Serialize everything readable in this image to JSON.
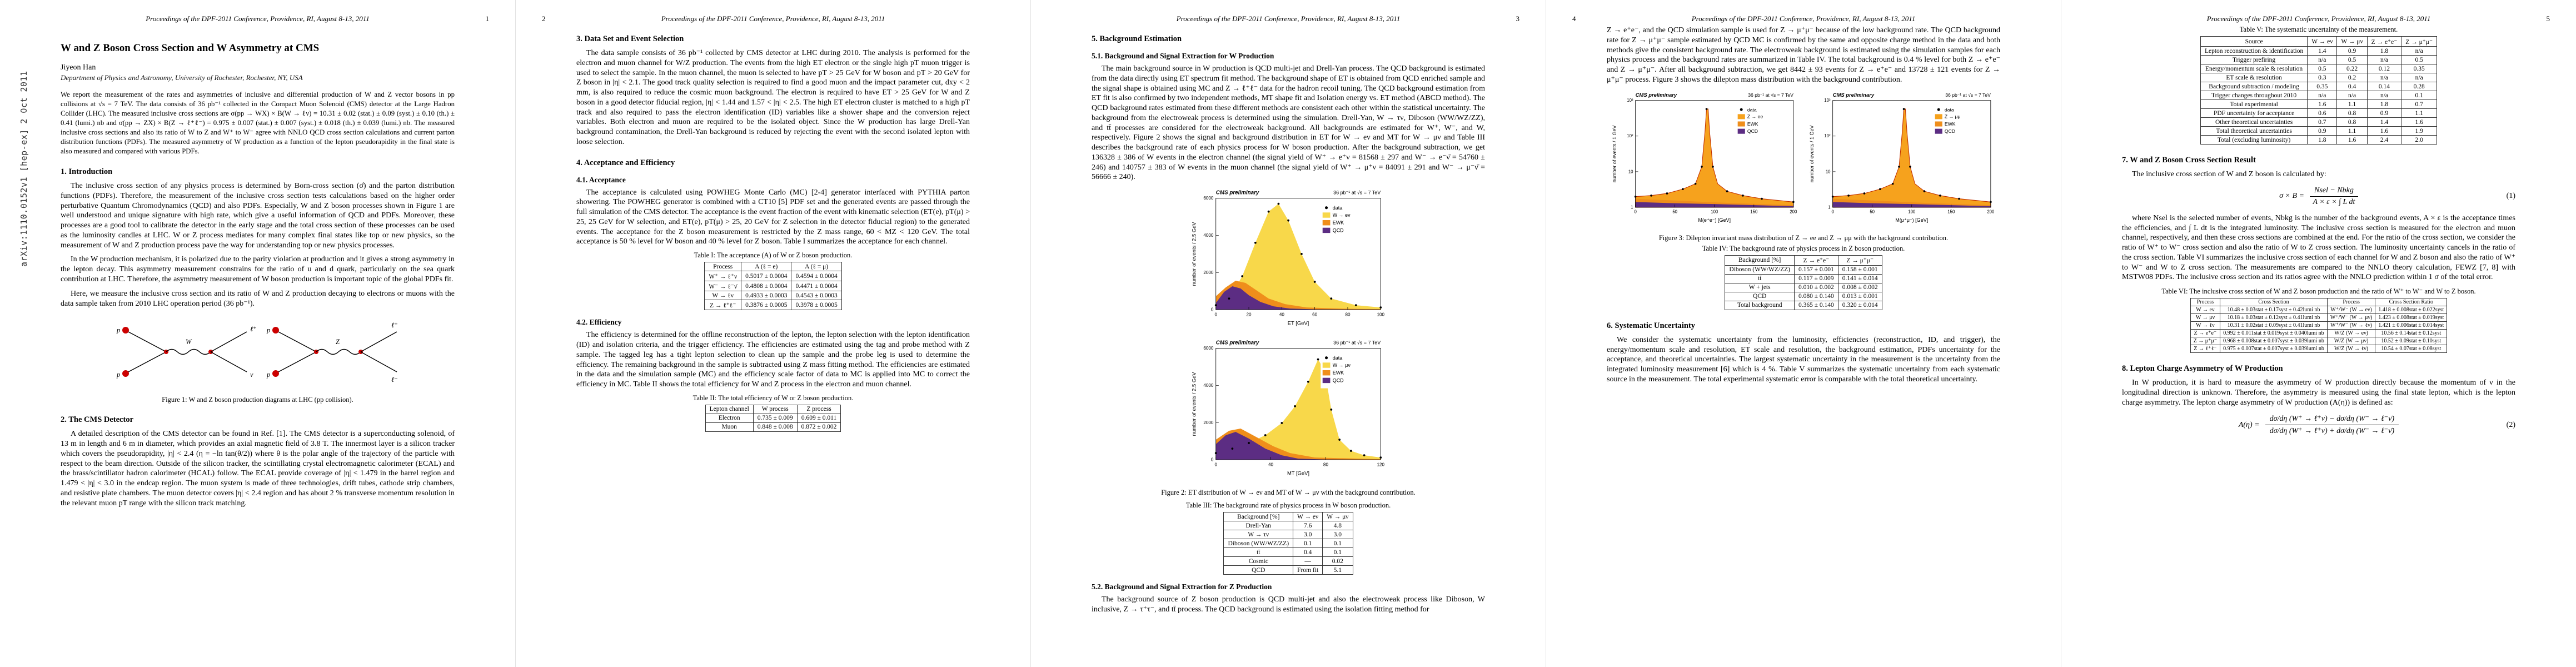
{
  "arxiv": "arXiv:1110.0152v1  [hep-ex]  2 Oct 2011",
  "header": {
    "conference": "Proceedings of the DPF-2011 Conference, Providence, RI, August 8-13, 2011"
  },
  "colors": {
    "signal_yellow": "#f8d84a",
    "ewk_orange": "#ef8e1b",
    "qcd_purple": "#5c2d83",
    "z_peak_fill": "#f6a21d",
    "z_peak_line": "#c23000",
    "vertex_red": "#cc0000"
  },
  "p1": {
    "num": "1",
    "title": "W and Z Boson Cross Section and W Asymmetry at CMS",
    "author": "Jiyeon Han",
    "affiliation": "Department of Physics and Astronomy, University of Rochester, Rochester, NY, USA",
    "abstract": "We report the measurement of the rates and asymmetries of inclusive and differential production of W and Z vector bosons in pp collisions at √s = 7 TeV. The data consists of 36 pb⁻¹ collected in the Compact Muon Solenoid (CMS) detector at the Large Hadron Collider (LHC). The measured inclusive cross sections are σ(pp → WX) × B(W → ℓν) = 10.31 ± 0.02 (stat.) ± 0.09 (syst.) ± 0.10 (th.) ± 0.41 (lumi.) nb and σ(pp → ZX) × B(Z → ℓ⁺ℓ⁻) = 0.975 ± 0.007 (stat.) ± 0.007 (syst.) ± 0.018 (th.) ± 0.039 (lumi.) nb. The measured inclusive cross sections and also its ratio of W to Z and W⁺ to W⁻ agree with NNLO QCD cross section calculations and current parton distribution functions (PDFs). The measured asymmetry of W production as a function of the lepton pseudorapidity in the final state is also measured and compared with various PDFs.",
    "s1": "1. Introduction",
    "s1_p1": "The inclusive cross section of any physics process is determined by Born-cross section (σ̂) and the parton distribution functions (PDFs). Therefore, the measurement of the inclusive cross section tests calculations based on the higher order perturbative Quantum Chromodynamics (QCD) and also PDFs. Especially, W and Z boson processes shown in Figure 1 are well understood and unique signature with high rate, which give a useful information of QCD and PDFs. Moreover, these processes are a good tool to calibrate the detector in the early stage and the total cross section of these processes can be used as the luminosity candles at LHC. W or Z process mediates for many complex final states like top or new physics, so the measurement of W and Z production process pave the way for understanding top or new physics processes.",
    "s1_p2": "In the W production mechanism, it is polarized due to the parity violation at production and it gives a strong asymmetry in the lepton decay. This asymmetry measurement constrains for the ratio of u and d quark, particularly on the sea quark contribution at LHC. Therefore, the asymmetry measurement of W boson production is important topic of the global PDFs fit.",
    "s1_p3": "Here, we measure the inclusive cross section and its ratio of W and Z production decaying to electrons or muons with the data sample taken from 2010 LHC operation period (36 pb⁻¹).",
    "s2": "2. The CMS Detector",
    "s2_p1": "A detailed description of the CMS detector can be found in Ref. [1]. The CMS detector is a superconducting solenoid, of 13 m in length and 6 m in diameter, which provides an axial magnetic field of 3.8 T. The innermost layer is a silicon tracker which covers the pseudorapidity, |η| < 2.4 (η = −ln tan(θ/2)) where θ is the polar angle of the trajectory of the particle with respect to the beam direction. Outside of the silicon tracker, the scintillating crystal electromagnetic calorimeter (ECAL) and the brass/scintillator hadron calorimeter (HCAL) follow. The ECAL provide coverage of |η| < 1.479 in the barrel region and 1.479 < |η| < 3.0 in the endcap region. The muon system is made of three technologies, drift tubes, cathode strip chambers, and resistive plate chambers. The muon detector covers |η| < 2.4 region and has about 2 % transverse momentum resolution in the relevant muon pT range with the silicon track matching."
  },
  "fig1": {
    "caption": "Figure 1: W and Z boson production diagrams at LHC (pp collision).",
    "d1": {
      "in1": "p",
      "in2": "p",
      "boson": "W",
      "out1": "ℓ⁺",
      "out2": "ν"
    },
    "d2": {
      "in1": "p",
      "in2": "p",
      "boson": "Z",
      "out1": "ℓ⁺",
      "out2": "ℓ⁻"
    }
  },
  "p2": {
    "num": "2",
    "s3": "3. Data Set and Event Selection",
    "s3_p1": "The data sample consists of 36 pb⁻¹ collected by CMS detector at LHC during 2010. The analysis is performed for the electron and muon channel for W/Z production. The events from the high ET electron or the single high pT muon trigger is used to select the sample. In the muon channel, the muon is selected to have pT > 25 GeV for W boson and pT > 20 GeV for Z boson in |η| < 2.1. The good track quality selection is required to find a good muon and the impact parameter cut, dxy < 2 mm, is also required to reduce the cosmic muon background. The electron is required to have ET > 25 GeV for W and Z boson in a good detector fiducial region, |η| < 1.44 and 1.57 < |η| < 2.5. The high ET electron cluster is matched to a high pT track and also required to pass the electron identification (ID) variables like a shower shape and the conversion reject variables. Both electron and muon are required to be the isolated object. Since the W production has large Drell-Yan background contamination, the Drell-Yan background is reduced by rejecting the event with the second isolated lepton with loose selection.",
    "s4": "4. Acceptance and Efficiency",
    "s41": "4.1. Acceptance",
    "s41_p1": "The acceptance is calculated using POWHEG Monte Carlo (MC) [2-4] generator interfaced with PYTHIA parton showering. The POWHEG generator is combined with a CT10 [5] PDF set and the generated events are passed through the full simulation of the CMS detector. The acceptance is the event fraction of the event with kinematic selection (ET(e), pT(μ) > 25, 25 GeV for W selection, and ET(e), pT(μ) > 25, 20 GeV for Z selection in the detector fiducial region) to the generated events. The acceptance for the Z boson measurement is restricted by the Z mass range, 60 < MZ < 120 GeV. The total acceptance is 50 % level for W boson and 40 % level for Z boson. Table I summarizes the acceptance for each channel.",
    "s42": "4.2. Efficiency",
    "s42_p1": "The efficiency is determined for the offline reconstruction of the lepton, the lepton selection with the lepton identification (ID) and isolation criteria, and the trigger efficiency. The efficiencies are estimated using the tag and probe method with Z sample. The tagged leg has a tight lepton selection to clean up the sample and the probe leg is used to determine the efficiency. The remaining background in the sample is subtracted using Z mass fitting method. The efficiencies are estimated in the data and the simulation sample (MC) and the efficiency scale factor of data to MC is applied into MC to correct the efficiency in MC. Table II shows the total efficiency for W and Z process in the electron and muon channel."
  },
  "p3": {
    "num": "3",
    "s5": "5. Background Estimation",
    "s51": "5.1. Background and Signal Extraction for W Production",
    "s51_p1": "The main background source in W production is QCD multi-jet and Drell-Yan process. The QCD background is estimated from the data directly using ET spectrum fit method. The background shape of ET is obtained from QCD enriched sample and the signal shape is obtained using MC and Z → ℓ⁺ℓ⁻ data for the hadron recoil tuning. The QCD background estimation from ET fit is also confirmed by two independent methods, MT shape fit and Isolation energy vs. ET method (ABCD method). The QCD background rates estimated from these different methods are consistent each other within the statistical uncertainty. The background from the electroweak process is determined using the simulation. Drell-Yan, W → τν, Diboson (WW/WZ/ZZ), and tt̄ processes are considered for the electroweak background. All backgrounds are estimated for W⁺, W⁻, and W, respectively. Figure 2 shows the signal and background distribution in ET for W → eν and MT for W → μν and Table III describes the background rate of each physics process for W boson production. After the background subtraction, we get 136328 ± 386 of W events in the electron channel (the signal yield of W⁺ → e⁺ν = 81568 ± 297 and W⁻ → e⁻ν̄ = 54760 ± 246) and 140757 ± 383 of W events in the muon channel (the signal yield of W⁺ → μ⁺ν = 84091 ± 291 and W⁻ → μ⁻ν̄ = 56666 ± 240).",
    "s52": "5.2. Background and Signal Extraction for Z Production",
    "s52_p1": "The background source of Z boson production is QCD multi-jet and also the electroweak process like Diboson, W inclusive, Z → τ⁺τ⁻, and tt̄ process. The QCD background is estimated using the isolation fitting method for"
  },
  "fig2": {
    "caption": "Figure 2: ET distribution of W → eν and MT of W → μν with the background contribution.",
    "cms": "CMS preliminary",
    "lumi": "36 pb⁻¹ at √s = 7 TeV",
    "p1": {
      "ylabel": "number of events / 2.5 GeV",
      "xlabel": "ET [GeV]",
      "legend": [
        "data",
        "W → eν",
        "EWK",
        "QCD"
      ],
      "xticks": [
        "0",
        "20",
        "40",
        "60",
        "80",
        "100"
      ],
      "yticks": [
        "0",
        "2000",
        "4000",
        "6000"
      ]
    },
    "p2": {
      "ylabel": "number of events / 2.5 GeV",
      "xlabel": "MT [GeV]",
      "legend": [
        "data",
        "W → μν",
        "EWK",
        "QCD"
      ],
      "xticks": [
        "0",
        "40",
        "80",
        "120"
      ],
      "yticks": [
        "0",
        "2000",
        "4000",
        "6000"
      ]
    }
  },
  "p4": {
    "num": "4",
    "cont_p1": "Z → e⁺e⁻, and the QCD simulation sample is used for Z → μ⁺μ⁻ because of the low background rate. The QCD background rate for Z → μ⁺μ⁻ sample estimated by QCD MC is confirmed by the same and opposite charge method in the data and both methods give the consistent background rate. The electroweak background is estimated using the simulation samples for each physics process and the background rates are summarized in Table IV. The total background is 0.4 % level for both Z → e⁺e⁻ and Z → μ⁺μ⁻. After all background subtraction, we get 8442 ± 93 events for Z → e⁺e⁻ and 13728 ± 121 events for Z → μ⁺μ⁻ process. Figure 3 shows the dilepton mass distribution with the background contribution.",
    "s6": "6. Systematic Uncertainty",
    "s6_p1": "We consider the systematic uncertainty from the luminosity, efficiencies (reconstruction, ID, and trigger), the energy/momentum scale and resolution, ET scale and resolution, the background estimation, PDFs uncertainty for the acceptance, and theoretical uncertainties. The largest systematic uncertainty in the measurement is the uncertainty from the integrated luminosity measurement [6] which is 4 %. Table V summarizes the systematic uncertainty from each systematic source in the measurement. The total experimental systematic error is comparable with the total theoretical uncertainty."
  },
  "fig3": {
    "caption": "Figure 3: Dilepton invariant mass distribution of Z → ee and Z → μμ with the background contribution.",
    "cms": "CMS preliminary",
    "lumi": "36 pb⁻¹ at √s = 7 TeV",
    "p1": {
      "ylabel": "number of events / 1 GeV",
      "xlabel": "M(e⁺e⁻) [GeV]",
      "legend": [
        "data",
        "Z → ee",
        "EWK",
        "QCD"
      ],
      "xticks": [
        "0",
        "50",
        "100",
        "150",
        "200"
      ],
      "yticks": [
        "1",
        "10",
        "10²",
        "10³"
      ]
    },
    "p2": {
      "ylabel": "number of events / 1 GeV",
      "xlabel": "M(μ⁺μ⁻) [GeV]",
      "legend": [
        "data",
        "Z → μμ",
        "EWK",
        "QCD"
      ],
      "xticks": [
        "0",
        "50",
        "100",
        "150",
        "200"
      ],
      "yticks": [
        "1",
        "10",
        "10²",
        "10³"
      ]
    }
  },
  "p5": {
    "num": "5",
    "s7": "7. W and Z Boson Cross Section Result",
    "s7_intro": "The inclusive cross section of W and Z boson is calculated by:",
    "s7_p1": "where Nsel is the selected number of events, Nbkg is the number of the background events, A × ε is the acceptance times the efficiencies, and ∫ L dt is the integrated luminosity. The inclusive cross section is measured for the electron and muon channel, respectively, and then these cross sections are combined at the end. For the ratio of the cross section, we consider the ratio of W⁺ to W⁻ cross section and also the ratio of W to Z cross section. The luminosity uncertainty cancels in the ratio of the cross section. Table VI summarizes the inclusive cross section of each channel for W and Z boson and also the ratio of W⁺ to W⁻ and W to Z cross section. The measurements are compared to the NNLO theory calculation, FEWZ [7, 8] with MSTW08 PDFs. The inclusive cross section and its ratios agree with the NNLO prediction within 1 σ of the total error.",
    "s8": "8. Lepton Charge Asymmetry of W Production",
    "s8_p1": "In W production, it is hard to measure the asymmetry of W production directly because the momentum of ν in the longitudinal direction is unknown. Therefore, the asymmetry is measured using the final state lepton, which is the lepton charge asymmetry. The lepton charge asymmetry of W production (A(η)) is defined as:"
  },
  "eq1": {
    "lhs": "σ × B =",
    "num": "Nsel − Nbkg",
    "den": "A × ε × ∫ L dt",
    "tag": "(1)"
  },
  "eq2": {
    "lhs": "A(η) =",
    "num": "dσ/dη (W⁺ → ℓ⁺ν) − dσ/dη (W⁻ → ℓ⁻ν̄)",
    "den": "dσ/dη (W⁺ → ℓ⁺ν) + dσ/dη (W⁻ → ℓ⁻ν̄)",
    "tag": "(2)"
  },
  "tables": {
    "t1": {
      "caption": "Table I: The acceptance (A) of W or Z boson production.",
      "headers": [
        "Process",
        "A (ℓ = e)",
        "A (ℓ = μ)"
      ],
      "rows": [
        [
          "W⁺ → ℓ⁺ν",
          "0.5017 ± 0.0004",
          "0.4594 ± 0.0004"
        ],
        [
          "W⁻ → ℓ⁻ν̄",
          "0.4808 ± 0.0004",
          "0.4471 ± 0.0004"
        ],
        [
          "W → ℓν",
          "0.4933 ± 0.0003",
          "0.4543 ± 0.0003"
        ],
        [
          "Z → ℓ⁺ℓ⁻",
          "0.3876 ± 0.0005",
          "0.3978 ± 0.0005"
        ]
      ]
    },
    "t2": {
      "caption": "Table II: The total efficiency of W or Z boson production.",
      "headers": [
        "Lepton channel",
        "W process",
        "Z process"
      ],
      "rows": [
        [
          "Electron",
          "0.735 ± 0.009",
          "0.609 ± 0.011"
        ],
        [
          "Muon",
          "0.848 ± 0.008",
          "0.872 ± 0.002"
        ]
      ]
    },
    "t3": {
      "caption": "Table III: The background rate of physics process in W boson production.",
      "headers": [
        "Background [%]",
        "W → eν",
        "W → μν"
      ],
      "rows": [
        [
          "Drell-Yan",
          "7.6",
          "4.8"
        ],
        [
          "W → τν",
          "3.0",
          "3.0"
        ],
        [
          "Diboson (WW/WZ/ZZ)",
          "0.1",
          "0.1"
        ],
        [
          "tt̄",
          "0.4",
          "0.1"
        ],
        [
          "Cosmic",
          "—",
          "0.02"
        ],
        [
          "QCD",
          "From fit",
          "5.1"
        ]
      ]
    },
    "t4": {
      "caption": "Table IV: The background rate of physics process in Z boson production.",
      "headers": [
        "Background [%]",
        "Z → e⁺e⁻",
        "Z → μ⁺μ⁻"
      ],
      "rows": [
        [
          "Diboson (WW/WZ/ZZ)",
          "0.157 ± 0.001",
          "0.158 ± 0.001"
        ],
        [
          "tt̄",
          "0.117 ± 0.009",
          "0.141 ± 0.014"
        ],
        [
          "W + jets",
          "0.010 ± 0.002",
          "0.008 ± 0.002"
        ],
        [
          "QCD",
          "0.080 ± 0.140",
          "0.013 ± 0.001"
        ],
        [
          "Total background",
          "0.365 ± 0.140",
          "0.320 ± 0.014"
        ]
      ]
    },
    "t5": {
      "caption": "Table V: The systematic uncertainty of the measurement.",
      "headers": [
        "Source",
        "W → eν",
        "W → μν",
        "Z → e⁺e⁻",
        "Z → μ⁺μ⁻"
      ],
      "rows": [
        [
          "Lepton reconstruction & identification",
          "1.4",
          "0.9",
          "1.8",
          "n/a"
        ],
        [
          "Trigger prefiring",
          "n/a",
          "0.5",
          "n/a",
          "0.5"
        ],
        [
          "Energy/momentum scale & resolution",
          "0.5",
          "0.22",
          "0.12",
          "0.35"
        ],
        [
          "ET scale & resolution",
          "0.3",
          "0.2",
          "n/a",
          "n/a"
        ],
        [
          "Background subtraction / modeling",
          "0.35",
          "0.4",
          "0.14",
          "0.28"
        ],
        [
          "Trigger changes throughout 2010",
          "n/a",
          "n/a",
          "n/a",
          "0.1"
        ],
        [
          "Total experimental",
          "1.6",
          "1.1",
          "1.8",
          "0.7"
        ],
        [
          "PDF uncertainty for acceptance",
          "0.6",
          "0.8",
          "0.9",
          "1.1"
        ],
        [
          "Other theoretical uncertainties",
          "0.7",
          "0.8",
          "1.4",
          "1.6"
        ],
        [
          "Total theoretical uncertainties",
          "0.9",
          "1.1",
          "1.6",
          "1.9"
        ],
        [
          "Total (excluding luminosity)",
          "1.8",
          "1.6",
          "2.4",
          "2.0"
        ]
      ]
    },
    "t6": {
      "caption": "Table VI: The inclusive cross section of W and Z boson production and the ratio of W⁺ to W⁻ and W to Z boson.",
      "headers": [
        "Process",
        "Cross Section",
        "Process",
        "Cross Section Ratio"
      ],
      "rows": [
        [
          "W → eν",
          "10.48 ± 0.03stat ± 0.17syst ± 0.42lumi nb",
          "W⁺/W⁻ (W → eν)",
          "1.418 ± 0.008stat ± 0.022syst"
        ],
        [
          "W → μν",
          "10.18 ± 0.03stat ± 0.12syst ± 0.41lumi nb",
          "W⁺/W⁻ (W → μν)",
          "1.423 ± 0.008stat ± 0.019syst"
        ],
        [
          "W → ℓν",
          "10.31 ± 0.02stat ± 0.09syst ± 0.41lumi nb",
          "W⁺/W⁻ (W → ℓν)",
          "1.421 ± 0.006stat ± 0.014syst"
        ],
        [
          "Z → e⁺e⁻",
          "0.992 ± 0.011stat ± 0.019syst ± 0.040lumi nb",
          "W/Z (W → eν)",
          "10.56 ± 0.14stat ± 0.12syst"
        ],
        [
          "Z → μ⁺μ⁻",
          "0.968 ± 0.008stat ± 0.007syst ± 0.039lumi nb",
          "W/Z (W → μν)",
          "10.52 ± 0.09stat ± 0.10syst"
        ],
        [
          "Z → ℓ⁺ℓ⁻",
          "0.975 ± 0.007stat ± 0.007syst ± 0.039lumi nb",
          "W/Z (W → ℓν)",
          "10.54 ± 0.07stat ± 0.08syst"
        ]
      ]
    }
  }
}
